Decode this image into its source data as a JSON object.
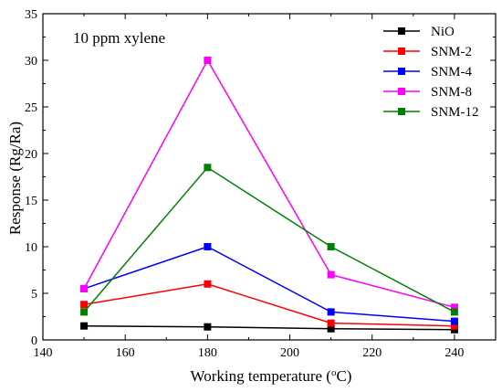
{
  "chart_data": {
    "type": "line",
    "annotation": "10 ppm xylene",
    "xlabel": "Working temperature (",
    "xlabel_unit_sup": "o",
    "xlabel_unit": "C)",
    "ylabel": "Response (Rg/Ra)",
    "x": [
      150,
      180,
      210,
      240
    ],
    "xlim": [
      140,
      250
    ],
    "ylim": [
      0,
      35
    ],
    "xticks": [
      "140",
      "160",
      "180",
      "200",
      "220",
      "240"
    ],
    "yticks": [
      "0",
      "5",
      "10",
      "15",
      "20",
      "25",
      "30",
      "35"
    ],
    "legend_position": "top-right",
    "series": [
      {
        "name": "NiO",
        "color": "#000000",
        "values": [
          1.5,
          1.4,
          1.2,
          1.1
        ]
      },
      {
        "name": "SNM-2",
        "color": "#ff0000",
        "values": [
          3.8,
          6.0,
          1.8,
          1.5
        ]
      },
      {
        "name": "SNM-4",
        "color": "#0000ff",
        "values": [
          5.5,
          10.0,
          3.0,
          2.0
        ]
      },
      {
        "name": "SNM-8",
        "color": "#ff00ff",
        "values": [
          5.5,
          30.0,
          7.0,
          3.5
        ]
      },
      {
        "name": "SNM-12",
        "color": "#008000",
        "values": [
          3.0,
          18.5,
          10.0,
          3.0
        ]
      }
    ]
  }
}
